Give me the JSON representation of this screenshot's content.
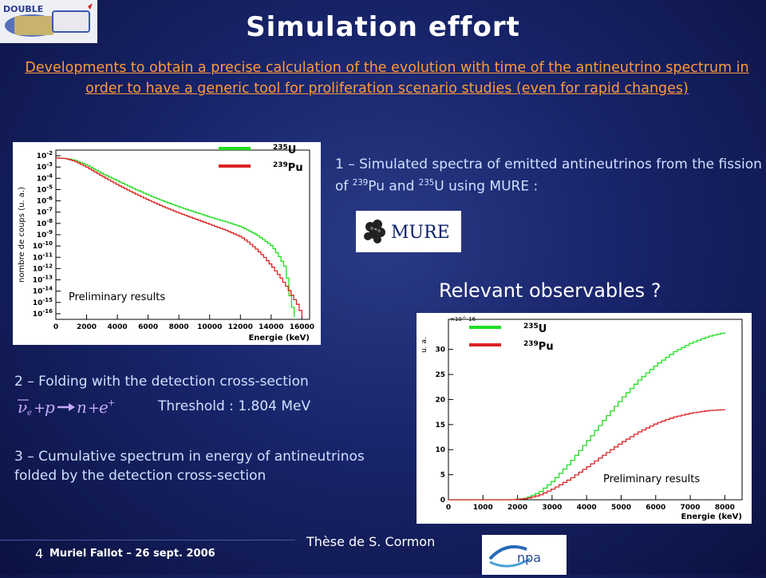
{
  "header": {
    "title": "Simulation effort",
    "subtitle": "Developments to obtain a precise calculation of the evolution with time of the antineutrino spectrum in order to have a generic tool for proliferation scenario studies (even for rapid changes)"
  },
  "colors": {
    "u235": "#22dd22",
    "pu239": "#dd2222",
    "accent": "#ff9a3c"
  },
  "steps": {
    "step1": {
      "text": "1 – Simulated spectra of emitted antineutrinos from the fission of ",
      "pu_mass": "239",
      "pu": "Pu",
      "and": " and ",
      "u_mass": "235",
      "u": "U",
      "tail": " using MURE :"
    },
    "step2": {
      "text": "2 – Folding with the detection cross-section",
      "threshold": "Threshold : 1.804 MeV"
    },
    "step3": {
      "text": "3 – Cumulative spectrum in energy of antineutrinos folded by the detection cross-section"
    }
  },
  "mure_logo": {
    "label": "MURE"
  },
  "observables": "Relevant observables ?",
  "credit": "Thèse de S. Cormon",
  "footer": {
    "slide_number": "4",
    "author": "Muriel Fallot – 26 sept. 2006"
  },
  "logos": {
    "top_left": "DOUBLE",
    "bottom_right": "npa"
  },
  "chart_data": [
    {
      "type": "line",
      "ylabel": "nombre de coups (u. a.)",
      "xlabel": "Energie (keV)",
      "annotation": "Preliminary results",
      "x_ticks": [
        0,
        2000,
        4000,
        6000,
        8000,
        10000,
        12000,
        14000,
        16000
      ],
      "y_tick_labels": [
        "10^-2",
        "10^-3",
        "10^-4",
        "10^-5",
        "10^-6",
        "10^-7",
        "10^-8",
        "10^-9",
        "10^-10",
        "10^-11",
        "10^-12",
        "10^-13",
        "10^-14",
        "10^-15",
        "10^-16"
      ],
      "xlim": [
        0,
        16500
      ],
      "y_log_range": [
        -16.5,
        -1.5
      ],
      "series": [
        {
          "name": "235U",
          "mass": "235",
          "element": "U",
          "x": [
            0,
            600,
            1200,
            2000,
            3000,
            4000,
            5000,
            6000,
            7000,
            8000,
            9000,
            10000,
            11000,
            12000,
            13000,
            14000,
            14500,
            14900,
            15000,
            15200,
            15500
          ],
          "log_y": [
            -2.2,
            -2.25,
            -2.4,
            -2.85,
            -3.6,
            -4.25,
            -4.9,
            -5.5,
            -6.05,
            -6.55,
            -7.0,
            -7.45,
            -7.85,
            -8.3,
            -9.0,
            -10.0,
            -11.0,
            -12.0,
            -13.0,
            -14.8,
            -16.3
          ]
        },
        {
          "name": "239Pu",
          "mass": "239",
          "element": "Pu",
          "x": [
            0,
            600,
            1200,
            2000,
            3000,
            4000,
            5000,
            6000,
            7000,
            8000,
            9000,
            10000,
            11000,
            12000,
            12500,
            13000,
            13500,
            14000,
            14500,
            15000,
            15400,
            15700,
            16000
          ],
          "log_y": [
            -2.2,
            -2.25,
            -2.5,
            -3.05,
            -3.85,
            -4.6,
            -5.3,
            -5.95,
            -6.55,
            -7.1,
            -7.6,
            -8.1,
            -8.6,
            -9.2,
            -9.7,
            -10.3,
            -11.0,
            -11.8,
            -12.7,
            -13.7,
            -14.6,
            -15.3,
            -16.3
          ]
        }
      ]
    },
    {
      "type": "line",
      "ylabel": "u. a.",
      "xlabel": "Energie (keV)",
      "annotation": "Preliminary results",
      "exponent": "×10^-16",
      "x_ticks": [
        0,
        1000,
        2000,
        3000,
        4000,
        5000,
        6000,
        7000,
        8000
      ],
      "y_ticks": [
        0,
        5,
        10,
        15,
        20,
        25,
        30
      ],
      "xlim": [
        0,
        8500
      ],
      "ylim": [
        0,
        36
      ],
      "series": [
        {
          "name": "235U",
          "mass": "235",
          "element": "U",
          "x": [
            0,
            1800,
            2200,
            2600,
            3000,
            3500,
            4000,
            4500,
            5000,
            5500,
            6000,
            6500,
            7000,
            7500,
            8000
          ],
          "y": [
            0,
            0,
            0.3,
            1.5,
            3.8,
            7.5,
            11.8,
            16.2,
            20.3,
            24.0,
            27.0,
            29.5,
            31.3,
            32.6,
            33.4
          ]
        },
        {
          "name": "239Pu",
          "mass": "239",
          "element": "Pu",
          "x": [
            0,
            1800,
            2200,
            2600,
            3000,
            3500,
            4000,
            4500,
            5000,
            5500,
            6000,
            6500,
            7000,
            7500,
            8000
          ],
          "y": [
            0,
            0,
            0.2,
            0.9,
            2.2,
            4.2,
            6.6,
            9.1,
            11.5,
            13.6,
            15.3,
            16.5,
            17.3,
            17.8,
            18.0
          ]
        }
      ]
    }
  ]
}
